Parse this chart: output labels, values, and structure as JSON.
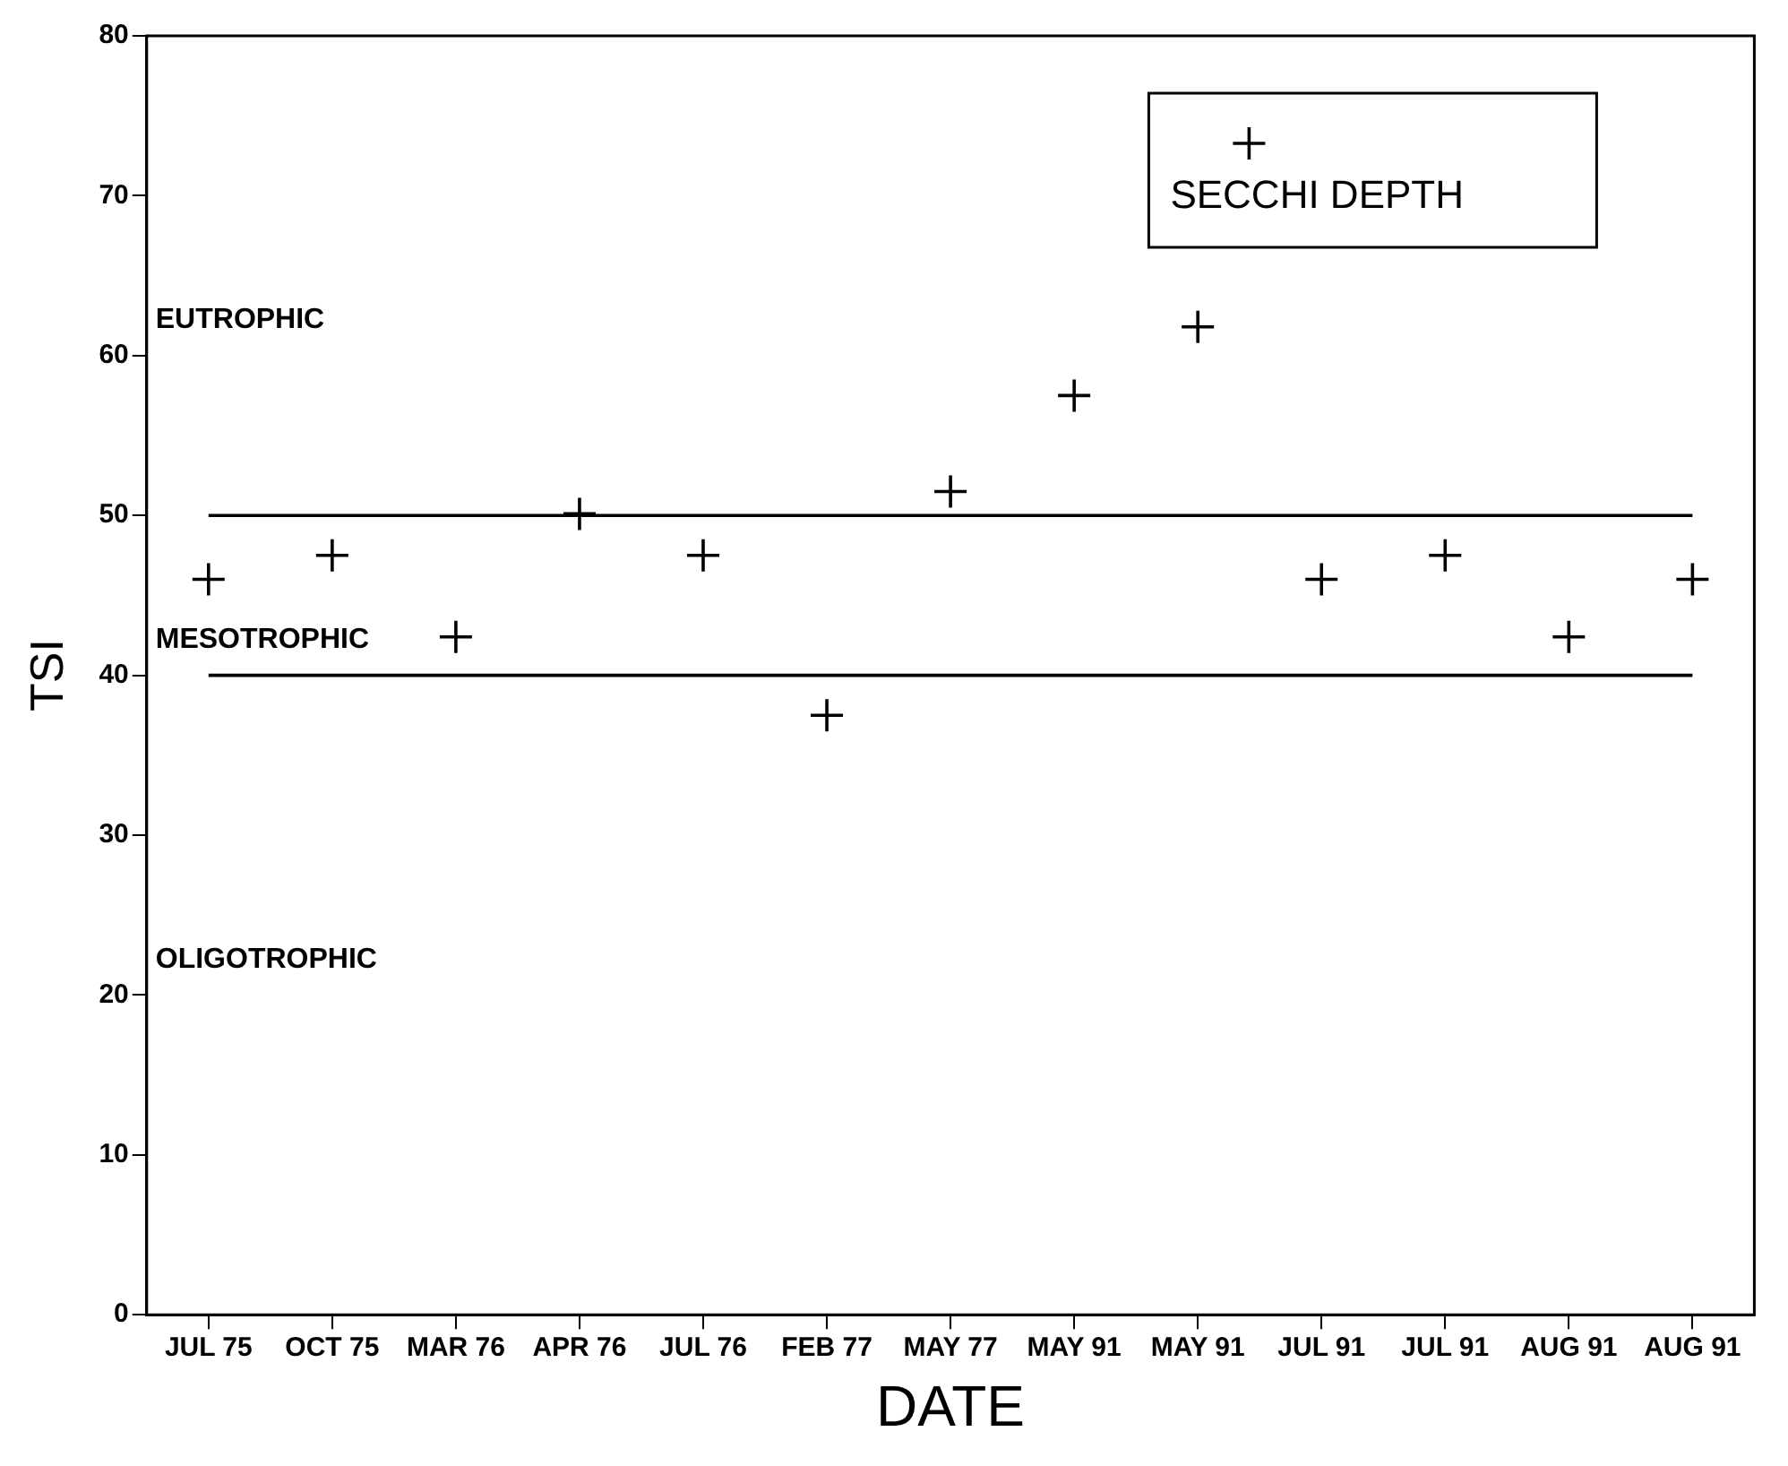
{
  "chart_data": {
    "type": "scatter",
    "xlabel": "DATE",
    "ylabel": "TSI",
    "categories": [
      "JUL 75",
      "OCT 75",
      "MAR 76",
      "APR 76",
      "JUL 76",
      "FEB 77",
      "MAY 77",
      "MAY 91",
      "MAY 91",
      "JUL 91",
      "JUL 91",
      "AUG 91",
      "AUG 91"
    ],
    "series": [
      {
        "name": "SECCHI DEPTH",
        "color": "#000000",
        "values": [
          46,
          47.5,
          42.4,
          50.1,
          47.5,
          37.5,
          51.5,
          57.5,
          61.8,
          46,
          47.5,
          42.4,
          46
        ]
      }
    ],
    "ylim": [
      0,
      80
    ],
    "yticks": [
      0,
      10,
      20,
      30,
      40,
      50,
      60,
      70,
      80
    ],
    "grid": false,
    "legend": "top right",
    "marker": "cross",
    "ref_lines": [
      {
        "axis": "y",
        "value": 50,
        "color": "#000000"
      },
      {
        "axis": "y",
        "value": 40,
        "color": "#000000"
      }
    ],
    "annotations": [
      "EUTROPHIC",
      "MESOTROPHIC",
      "OLIGOTROPHIC"
    ]
  }
}
